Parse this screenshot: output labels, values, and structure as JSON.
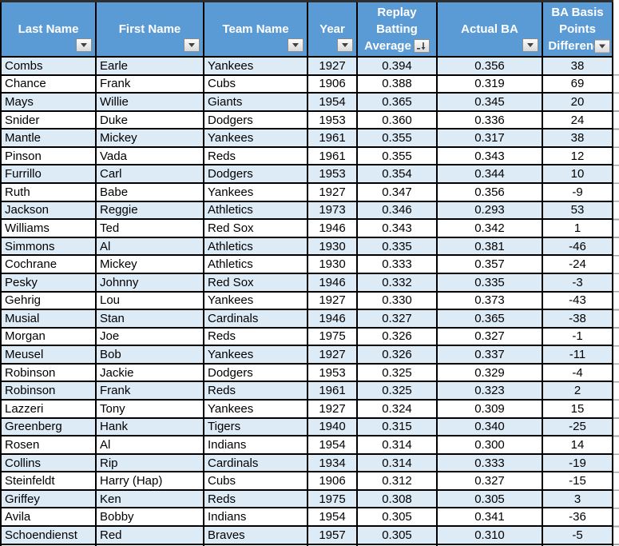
{
  "app": {
    "kind": "spreadsheet-table",
    "description": "Excel-style filtered table of replay vs actual batting averages"
  },
  "colors": {
    "header_bg": "#5b9bd5",
    "header_text": "#ffffff",
    "band_row_bg": "#ddebf7",
    "plain_row_bg": "#ffffff",
    "grid_border": "#000000",
    "filter_button_bg": "#ececec"
  },
  "table": {
    "columns": [
      {
        "id": "last-name",
        "label": "Last Name",
        "lines": [
          "Last Name"
        ],
        "align": "left",
        "button": "filter-dropdown",
        "button_pos": "bottom-right"
      },
      {
        "id": "first-name",
        "label": "First Name",
        "lines": [
          "First Name"
        ],
        "align": "left",
        "button": "filter-dropdown",
        "button_pos": "bottom-right"
      },
      {
        "id": "team-name",
        "label": "Team Name",
        "lines": [
          "Team Name"
        ],
        "align": "left",
        "button": "filter-dropdown",
        "button_pos": "bottom-right"
      },
      {
        "id": "year",
        "label": "Year",
        "lines": [
          "Year"
        ],
        "align": "center",
        "button": "filter-dropdown",
        "button_pos": "bottom-right"
      },
      {
        "id": "replay-batting-average",
        "label": "Replay Batting Average",
        "lines": [
          "Replay",
          "Batting",
          "Average"
        ],
        "align": "center",
        "button": "sort-descending-filter",
        "button_pos": "inline-last-line"
      },
      {
        "id": "actual-ba",
        "label": "Actual BA",
        "lines": [
          "Actual BA"
        ],
        "align": "center",
        "button": "filter-dropdown",
        "button_pos": "bottom-right"
      },
      {
        "id": "ba-basis-points-difference",
        "label": "BA Basis Points Difference",
        "lines": [
          "BA Basis",
          "Points",
          "Difference"
        ],
        "align": "center",
        "button": "filter-dropdown",
        "button_pos": "overlap-last-line"
      }
    ],
    "rows": [
      [
        "Combs",
        "Earle",
        "Yankees",
        "1927",
        "0.394",
        "0.356",
        "38"
      ],
      [
        "Chance",
        "Frank",
        "Cubs",
        "1906",
        "0.388",
        "0.319",
        "69"
      ],
      [
        "Mays",
        "Willie",
        "Giants",
        "1954",
        "0.365",
        "0.345",
        "20"
      ],
      [
        "Snider",
        "Duke",
        "Dodgers",
        "1953",
        "0.360",
        "0.336",
        "24"
      ],
      [
        "Mantle",
        "Mickey",
        "Yankees",
        "1961",
        "0.355",
        "0.317",
        "38"
      ],
      [
        "Pinson",
        "Vada",
        "Reds",
        "1961",
        "0.355",
        "0.343",
        "12"
      ],
      [
        "Furrillo",
        "Carl",
        "Dodgers",
        "1953",
        "0.354",
        "0.344",
        "10"
      ],
      [
        "Ruth",
        "Babe",
        "Yankees",
        "1927",
        "0.347",
        "0.356",
        "-9"
      ],
      [
        "Jackson",
        "Reggie",
        "Athletics",
        "1973",
        "0.346",
        "0.293",
        "53"
      ],
      [
        "Williams",
        "Ted",
        "Red Sox",
        "1946",
        "0.343",
        "0.342",
        "1"
      ],
      [
        "Simmons",
        "Al",
        "Athletics",
        "1930",
        "0.335",
        "0.381",
        "-46"
      ],
      [
        "Cochrane",
        "Mickey",
        "Athletics",
        "1930",
        "0.333",
        "0.357",
        "-24"
      ],
      [
        "Pesky",
        "Johnny",
        "Red Sox",
        "1946",
        "0.332",
        "0.335",
        "-3"
      ],
      [
        "Gehrig",
        "Lou",
        "Yankees",
        "1927",
        "0.330",
        "0.373",
        "-43"
      ],
      [
        "Musial",
        "Stan",
        "Cardinals",
        "1946",
        "0.327",
        "0.365",
        "-38"
      ],
      [
        "Morgan",
        "Joe",
        "Reds",
        "1975",
        "0.326",
        "0.327",
        "-1"
      ],
      [
        "Meusel",
        "Bob",
        "Yankees",
        "1927",
        "0.326",
        "0.337",
        "-11"
      ],
      [
        "Robinson",
        "Jackie",
        "Dodgers",
        "1953",
        "0.325",
        "0.329",
        "-4"
      ],
      [
        "Robinson",
        "Frank",
        "Reds",
        "1961",
        "0.325",
        "0.323",
        "2"
      ],
      [
        "Lazzeri",
        "Tony",
        "Yankees",
        "1927",
        "0.324",
        "0.309",
        "15"
      ],
      [
        "Greenberg",
        "Hank",
        "Tigers",
        "1940",
        "0.315",
        "0.340",
        "-25"
      ],
      [
        "Rosen",
        "Al",
        "Indians",
        "1954",
        "0.314",
        "0.300",
        "14"
      ],
      [
        "Collins",
        "Rip",
        "Cardinals",
        "1934",
        "0.314",
        "0.333",
        "-19"
      ],
      [
        "Steinfeldt",
        "Harry (Hap)",
        "Cubs",
        "1906",
        "0.312",
        "0.327",
        "-15"
      ],
      [
        "Griffey",
        "Ken",
        "Reds",
        "1975",
        "0.308",
        "0.305",
        "3"
      ],
      [
        "Avila",
        "Bobby",
        "Indians",
        "1954",
        "0.305",
        "0.341",
        "-36"
      ],
      [
        "Schoendienst",
        "Red",
        "Braves",
        "1957",
        "0.305",
        "0.310",
        "-5"
      ]
    ]
  }
}
